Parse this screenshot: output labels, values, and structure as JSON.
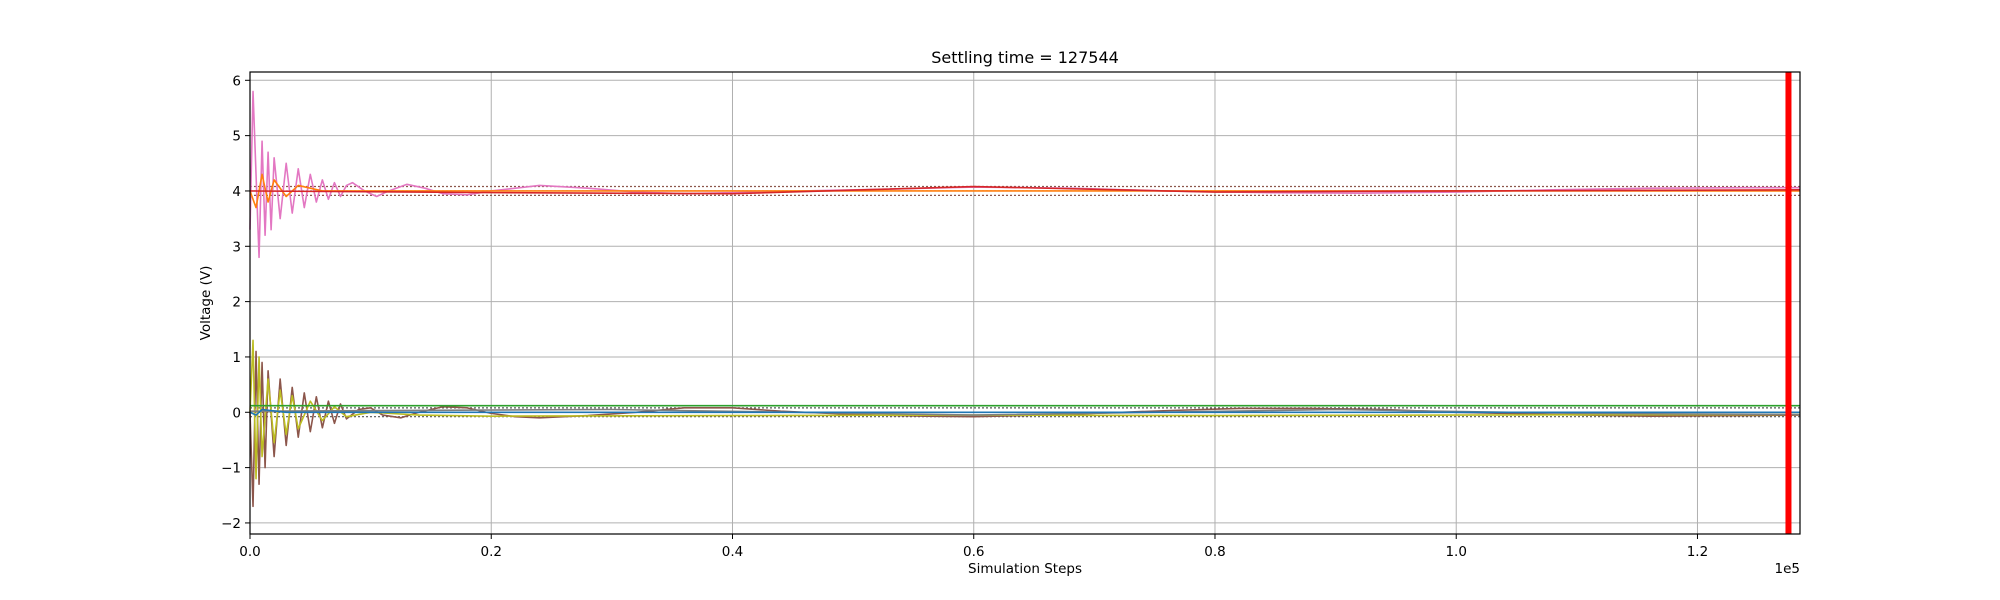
{
  "chart_data": {
    "type": "line",
    "title": "Settling time = 127544",
    "xlabel": "Simulation Steps",
    "ylabel": "Voltage (V)",
    "x_offset_text": "1e5",
    "xlim": [
      0,
      128500
    ],
    "ylim": [
      -2.2,
      6.15
    ],
    "x_ticks": [
      0,
      20000,
      40000,
      60000,
      80000,
      100000,
      120000
    ],
    "x_tick_labels": [
      "0.0",
      "0.2",
      "0.4",
      "0.6",
      "0.8",
      "1.0",
      "1.2"
    ],
    "y_ticks": [
      -2,
      -1,
      0,
      1,
      2,
      3,
      4,
      5,
      6
    ],
    "y_tick_labels": [
      "−2",
      "−1",
      "0",
      "1",
      "2",
      "3",
      "4",
      "5",
      "6"
    ],
    "grid": true,
    "settling_marker": {
      "x": 127544,
      "color": "#ff0000"
    },
    "reference_bands": [
      {
        "level": 4.0,
        "upper": 4.08,
        "lower": 3.92,
        "color": "#8c564b"
      },
      {
        "level": 0.0,
        "upper": 0.08,
        "lower": -0.08,
        "color": "#555555"
      }
    ],
    "series": [
      {
        "color": "#e377c2",
        "transient": [
          [
            0,
            3.3
          ],
          [
            250,
            5.8
          ],
          [
            500,
            4.3
          ],
          [
            750,
            2.8
          ],
          [
            1000,
            4.9
          ],
          [
            1250,
            3.2
          ],
          [
            1500,
            4.7
          ],
          [
            1750,
            3.3
          ],
          [
            2000,
            4.6
          ],
          [
            2500,
            3.5
          ],
          [
            3000,
            4.5
          ],
          [
            3500,
            3.6
          ],
          [
            4000,
            4.4
          ],
          [
            4500,
            3.7
          ],
          [
            5000,
            4.3
          ],
          [
            5500,
            3.8
          ],
          [
            6000,
            4.2
          ],
          [
            6500,
            3.85
          ],
          [
            7000,
            4.15
          ],
          [
            7500,
            3.9
          ],
          [
            8000,
            4.1
          ],
          [
            8500,
            4.15
          ],
          [
            9500,
            4.0
          ],
          [
            10500,
            3.9
          ],
          [
            11500,
            4.0
          ],
          [
            13000,
            4.12
          ],
          [
            14500,
            4.05
          ],
          [
            16000,
            3.95
          ],
          [
            18000,
            3.93
          ],
          [
            20000,
            4.0
          ],
          [
            24000,
            4.1
          ],
          [
            28000,
            4.05
          ],
          [
            32000,
            3.98
          ],
          [
            36000,
            3.95
          ],
          [
            40000,
            3.97
          ],
          [
            46000,
            4.0
          ],
          [
            52000,
            4.03
          ],
          [
            60000,
            4.07
          ],
          [
            68000,
            4.05
          ],
          [
            76000,
            4.0
          ],
          [
            84000,
            3.97
          ],
          [
            92000,
            3.96
          ],
          [
            100000,
            3.98
          ],
          [
            108000,
            4.02
          ],
          [
            116000,
            4.05
          ],
          [
            124000,
            4.06
          ],
          [
            128500,
            4.06
          ]
        ]
      },
      {
        "color": "#ff7f0e",
        "transient": [
          [
            0,
            4.0
          ],
          [
            500,
            3.7
          ],
          [
            1000,
            4.3
          ],
          [
            1500,
            3.8
          ],
          [
            2000,
            4.2
          ],
          [
            3000,
            3.9
          ],
          [
            4000,
            4.1
          ],
          [
            6000,
            4.0
          ],
          [
            128500,
            4.0
          ]
        ]
      },
      {
        "color": "#d62728",
        "transient": [
          [
            0,
            4.0
          ],
          [
            20000,
            3.97
          ],
          [
            40000,
            3.95
          ],
          [
            60000,
            4.08
          ],
          [
            80000,
            3.98
          ],
          [
            100000,
            4.0
          ],
          [
            128500,
            4.02
          ]
        ]
      },
      {
        "color": "#8c564b",
        "transient": [
          [
            0,
            0.0
          ],
          [
            250,
            -1.7
          ],
          [
            500,
            1.1
          ],
          [
            750,
            -1.3
          ],
          [
            1000,
            0.9
          ],
          [
            1250,
            -1.0
          ],
          [
            1500,
            0.75
          ],
          [
            2000,
            -0.8
          ],
          [
            2500,
            0.6
          ],
          [
            3000,
            -0.6
          ],
          [
            3500,
            0.45
          ],
          [
            4000,
            -0.45
          ],
          [
            4500,
            0.35
          ],
          [
            5000,
            -0.35
          ],
          [
            5500,
            0.28
          ],
          [
            6000,
            -0.28
          ],
          [
            6500,
            0.2
          ],
          [
            7000,
            -0.2
          ],
          [
            7500,
            0.15
          ],
          [
            8000,
            -0.12
          ],
          [
            9000,
            0.05
          ],
          [
            10000,
            0.08
          ],
          [
            11000,
            -0.05
          ],
          [
            12500,
            -0.1
          ],
          [
            14000,
            0.0
          ],
          [
            16000,
            0.1
          ],
          [
            18000,
            0.08
          ],
          [
            20000,
            -0.02
          ],
          [
            22000,
            -0.08
          ],
          [
            24000,
            -0.1
          ],
          [
            28000,
            -0.06
          ],
          [
            32000,
            0.0
          ],
          [
            36000,
            0.08
          ],
          [
            40000,
            0.08
          ],
          [
            44000,
            0.02
          ],
          [
            48000,
            -0.02
          ],
          [
            52000,
            -0.05
          ],
          [
            56000,
            -0.07
          ],
          [
            60000,
            -0.08
          ],
          [
            64000,
            -0.06
          ],
          [
            70000,
            -0.02
          ],
          [
            76000,
            0.03
          ],
          [
            82000,
            0.07
          ],
          [
            88000,
            0.07
          ],
          [
            94000,
            0.05
          ],
          [
            100000,
            0.0
          ],
          [
            108000,
            -0.04
          ],
          [
            116000,
            -0.07
          ],
          [
            124000,
            -0.06
          ],
          [
            128500,
            -0.05
          ]
        ]
      },
      {
        "color": "#bcbd22",
        "transient": [
          [
            0,
            0.0
          ],
          [
            250,
            1.3
          ],
          [
            500,
            -1.2
          ],
          [
            750,
            1.0
          ],
          [
            1000,
            -0.8
          ],
          [
            1500,
            0.6
          ],
          [
            2000,
            -0.55
          ],
          [
            2500,
            0.4
          ],
          [
            3000,
            -0.4
          ],
          [
            3500,
            0.3
          ],
          [
            4000,
            -0.3
          ],
          [
            5000,
            0.2
          ],
          [
            6000,
            -0.15
          ],
          [
            7000,
            0.1
          ],
          [
            8000,
            -0.08
          ],
          [
            10000,
            0.0
          ],
          [
            14000,
            -0.05
          ],
          [
            20000,
            -0.07
          ],
          [
            40000,
            -0.06
          ],
          [
            60000,
            -0.05
          ],
          [
            80000,
            -0.06
          ],
          [
            100000,
            -0.05
          ],
          [
            128500,
            -0.04
          ]
        ]
      },
      {
        "color": "#2ca02c",
        "transient": [
          [
            0,
            0.12
          ],
          [
            128500,
            0.12
          ]
        ]
      },
      {
        "color": "#7f7f7f",
        "transient": [
          [
            0,
            0.02
          ],
          [
            30000,
            0.05
          ],
          [
            60000,
            -0.05
          ],
          [
            90000,
            0.05
          ],
          [
            110000,
            -0.02
          ],
          [
            128500,
            -0.04
          ]
        ]
      },
      {
        "color": "#1f77b4",
        "transient": [
          [
            0,
            0.0
          ],
          [
            500,
            -0.05
          ],
          [
            1000,
            0.05
          ],
          [
            3000,
            0.0
          ],
          [
            128500,
            0.0
          ]
        ]
      }
    ]
  }
}
